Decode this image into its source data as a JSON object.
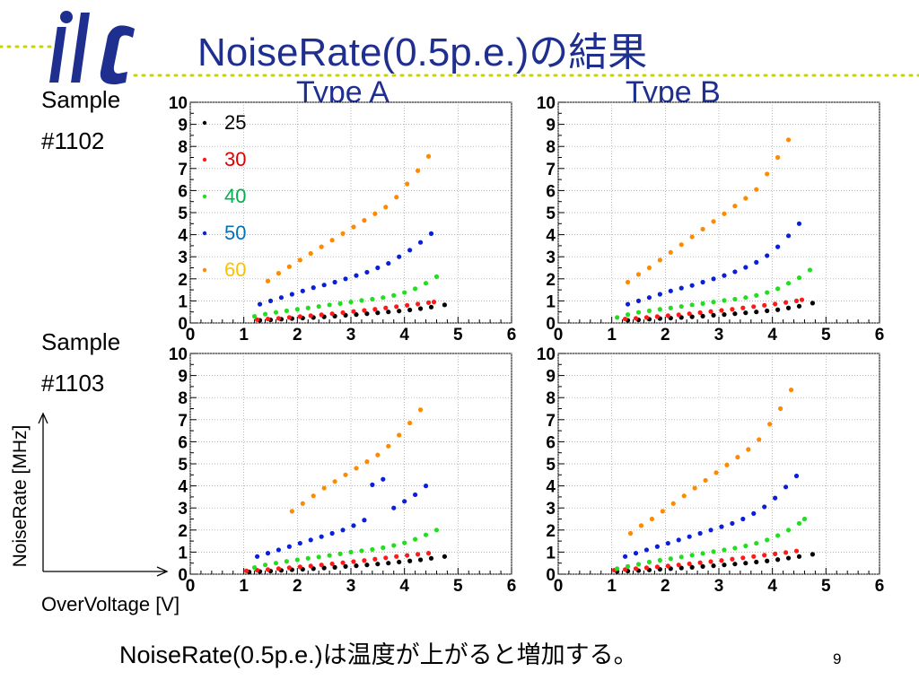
{
  "slide": {
    "title": "NoiseRate(0.5p.e.)の結果",
    "type_a": "Type A",
    "type_b": "Type B",
    "sample1_line1": "Sample",
    "sample1_line2": "#1102",
    "sample2_line1": "Sample",
    "sample2_line2": "#1103",
    "y_axis_desc": "NoiseRate [MHz]",
    "x_axis_desc": "OverVoltage [V]",
    "conclusion": "NoiseRate(0.5p.e.)は温度が上がると増加する。",
    "page_number": "9"
  },
  "colors": {
    "title": "#1f2f8f",
    "logo": "#1f2f8f",
    "deco_dots": "#c8d400",
    "series": {
      "25": "#000000",
      "30": "#ff1a1a",
      "40": "#22dd22",
      "50": "#0a1fd8",
      "60": "#ff8a00"
    },
    "legend_text": {
      "25": "#000000",
      "30": "#e00000",
      "40": "#00b050",
      "50": "#0070c0",
      "60": "#ffc000"
    }
  },
  "icons": {
    "logo": "ilc-logo"
  },
  "chart_data": [
    {
      "type": "scatter",
      "panel": "Sample #1102 - Type A",
      "xlim": [
        0,
        6
      ],
      "ylim": [
        0,
        10
      ],
      "x_ticks": [
        "0",
        "1",
        "2",
        "3",
        "4",
        "5",
        "6"
      ],
      "y_ticks": [
        "0",
        "1",
        "2",
        "3",
        "4",
        "5",
        "6",
        "7",
        "8",
        "9",
        "10"
      ],
      "grid": true,
      "legend": {
        "position": "top-left",
        "entries": [
          "25",
          "30",
          "40",
          "50",
          "60"
        ]
      },
      "series": [
        {
          "name": "25",
          "x": [
            1.3,
            1.5,
            1.7,
            1.9,
            2.1,
            2.3,
            2.5,
            2.7,
            2.9,
            3.1,
            3.3,
            3.5,
            3.7,
            3.9,
            4.1,
            4.3,
            4.5,
            4.75
          ],
          "y": [
            0.12,
            0.14,
            0.17,
            0.2,
            0.22,
            0.25,
            0.28,
            0.31,
            0.35,
            0.38,
            0.42,
            0.46,
            0.5,
            0.54,
            0.59,
            0.65,
            0.72,
            0.82
          ]
        },
        {
          "name": "30",
          "x": [
            1.25,
            1.45,
            1.65,
            1.85,
            2.05,
            2.25,
            2.45,
            2.65,
            2.85,
            3.05,
            3.25,
            3.45,
            3.65,
            3.85,
            4.05,
            4.25,
            4.45,
            4.55
          ],
          "y": [
            0.15,
            0.18,
            0.21,
            0.25,
            0.29,
            0.33,
            0.37,
            0.42,
            0.47,
            0.52,
            0.57,
            0.62,
            0.68,
            0.74,
            0.8,
            0.86,
            0.92,
            0.95
          ]
        },
        {
          "name": "40",
          "x": [
            1.2,
            1.4,
            1.6,
            1.8,
            2.0,
            2.2,
            2.4,
            2.6,
            2.8,
            3.0,
            3.2,
            3.4,
            3.6,
            3.8,
            4.0,
            4.2,
            4.4,
            4.6
          ],
          "y": [
            0.3,
            0.4,
            0.48,
            0.55,
            0.62,
            0.68,
            0.75,
            0.82,
            0.88,
            0.95,
            1.02,
            1.08,
            1.15,
            1.25,
            1.38,
            1.55,
            1.8,
            2.1
          ]
        },
        {
          "name": "50",
          "x": [
            1.3,
            1.5,
            1.7,
            1.9,
            2.1,
            2.3,
            2.5,
            2.7,
            2.9,
            3.1,
            3.3,
            3.5,
            3.7,
            3.9,
            4.1,
            4.3,
            4.5
          ],
          "y": [
            0.85,
            1.0,
            1.15,
            1.3,
            1.45,
            1.6,
            1.72,
            1.85,
            2.0,
            2.15,
            2.3,
            2.5,
            2.7,
            3.0,
            3.3,
            3.65,
            4.05
          ]
        },
        {
          "name": "60",
          "x": [
            1.45,
            1.65,
            1.85,
            2.05,
            2.25,
            2.45,
            2.65,
            2.85,
            3.05,
            3.25,
            3.45,
            3.65,
            3.85,
            4.05,
            4.25,
            4.45
          ],
          "y": [
            1.9,
            2.25,
            2.55,
            2.85,
            3.15,
            3.45,
            3.75,
            4.05,
            4.35,
            4.65,
            4.95,
            5.25,
            5.7,
            6.3,
            6.9,
            7.55
          ]
        }
      ]
    },
    {
      "type": "scatter",
      "panel": "Sample #1102 - Type B",
      "xlim": [
        0,
        6
      ],
      "ylim": [
        0,
        10
      ],
      "x_ticks": [
        "0",
        "1",
        "2",
        "3",
        "4",
        "5",
        "6"
      ],
      "y_ticks": [
        "0",
        "1",
        "2",
        "3",
        "4",
        "5",
        "6",
        "7",
        "8",
        "9",
        "10"
      ],
      "grid": true,
      "series": [
        {
          "name": "25",
          "x": [
            1.3,
            1.5,
            1.7,
            1.9,
            2.1,
            2.3,
            2.5,
            2.7,
            2.9,
            3.1,
            3.3,
            3.5,
            3.7,
            3.9,
            4.1,
            4.3,
            4.5,
            4.75
          ],
          "y": [
            0.12,
            0.14,
            0.17,
            0.2,
            0.22,
            0.25,
            0.28,
            0.31,
            0.35,
            0.38,
            0.42,
            0.46,
            0.5,
            0.55,
            0.6,
            0.68,
            0.76,
            0.9
          ]
        },
        {
          "name": "30",
          "x": [
            1.25,
            1.45,
            1.65,
            1.85,
            2.05,
            2.25,
            2.45,
            2.65,
            2.85,
            3.05,
            3.25,
            3.45,
            3.65,
            3.85,
            4.05,
            4.25,
            4.45,
            4.55
          ],
          "y": [
            0.18,
            0.21,
            0.25,
            0.29,
            0.33,
            0.37,
            0.42,
            0.47,
            0.52,
            0.57,
            0.62,
            0.68,
            0.74,
            0.8,
            0.86,
            0.93,
            1.0,
            1.05
          ]
        },
        {
          "name": "40",
          "x": [
            1.1,
            1.3,
            1.5,
            1.7,
            1.9,
            2.1,
            2.3,
            2.5,
            2.7,
            2.9,
            3.1,
            3.3,
            3.5,
            3.7,
            3.9,
            4.1,
            4.3,
            4.5,
            4.7
          ],
          "y": [
            0.25,
            0.38,
            0.48,
            0.55,
            0.62,
            0.68,
            0.75,
            0.82,
            0.88,
            0.95,
            1.02,
            1.08,
            1.15,
            1.25,
            1.38,
            1.55,
            1.8,
            2.05,
            2.4
          ]
        },
        {
          "name": "50",
          "x": [
            1.3,
            1.5,
            1.7,
            1.9,
            2.1,
            2.3,
            2.5,
            2.7,
            2.9,
            3.1,
            3.3,
            3.5,
            3.7,
            3.9,
            4.1,
            4.3,
            4.5
          ],
          "y": [
            0.85,
            1.0,
            1.15,
            1.3,
            1.45,
            1.58,
            1.7,
            1.85,
            2.0,
            2.15,
            2.32,
            2.52,
            2.75,
            3.05,
            3.45,
            3.95,
            4.5
          ]
        },
        {
          "name": "60",
          "x": [
            1.3,
            1.5,
            1.7,
            1.9,
            2.1,
            2.3,
            2.5,
            2.7,
            2.9,
            3.1,
            3.3,
            3.5,
            3.7,
            3.9,
            4.1,
            4.3
          ],
          "y": [
            1.85,
            2.2,
            2.5,
            2.85,
            3.2,
            3.55,
            3.9,
            4.25,
            4.6,
            4.95,
            5.3,
            5.65,
            6.05,
            6.75,
            7.5,
            8.3
          ]
        }
      ]
    },
    {
      "type": "scatter",
      "panel": "Sample #1103 - Type A",
      "xlim": [
        0,
        6
      ],
      "ylim": [
        0,
        10
      ],
      "x_ticks": [
        "0",
        "1",
        "2",
        "3",
        "4",
        "5",
        "6"
      ],
      "y_ticks": [
        "0",
        "1",
        "2",
        "3",
        "4",
        "5",
        "6",
        "7",
        "8",
        "9",
        "10"
      ],
      "grid": true,
      "series": [
        {
          "name": "25",
          "x": [
            1.1,
            1.3,
            1.5,
            1.7,
            1.9,
            2.1,
            2.3,
            2.5,
            2.7,
            2.9,
            3.1,
            3.3,
            3.5,
            3.7,
            3.9,
            4.1,
            4.3,
            4.5,
            4.75
          ],
          "y": [
            0.1,
            0.12,
            0.14,
            0.17,
            0.2,
            0.22,
            0.25,
            0.28,
            0.31,
            0.35,
            0.38,
            0.42,
            0.46,
            0.5,
            0.55,
            0.6,
            0.65,
            0.72,
            0.8
          ]
        },
        {
          "name": "30",
          "x": [
            1.05,
            1.25,
            1.45,
            1.65,
            1.85,
            2.05,
            2.25,
            2.45,
            2.65,
            2.85,
            3.05,
            3.25,
            3.45,
            3.65,
            3.85,
            4.05,
            4.25,
            4.45
          ],
          "y": [
            0.15,
            0.18,
            0.21,
            0.25,
            0.29,
            0.33,
            0.37,
            0.42,
            0.47,
            0.52,
            0.57,
            0.62,
            0.68,
            0.74,
            0.8,
            0.85,
            0.9,
            0.95
          ]
        },
        {
          "name": "40",
          "x": [
            1.2,
            1.4,
            1.6,
            1.8,
            2.0,
            2.2,
            2.4,
            2.6,
            2.8,
            3.0,
            3.2,
            3.4,
            3.6,
            3.8,
            4.0,
            4.2,
            4.4,
            4.6
          ],
          "y": [
            0.3,
            0.42,
            0.5,
            0.58,
            0.65,
            0.72,
            0.78,
            0.85,
            0.92,
            1.0,
            1.06,
            1.12,
            1.2,
            1.3,
            1.42,
            1.58,
            1.78,
            2.0
          ]
        },
        {
          "name": "50",
          "x": [
            1.25,
            1.45,
            1.65,
            1.85,
            2.05,
            2.25,
            2.45,
            2.65,
            2.85,
            3.05,
            3.25,
            3.4,
            3.6,
            3.8,
            4.0,
            4.2,
            4.4
          ],
          "y": [
            0.8,
            0.95,
            1.1,
            1.25,
            1.4,
            1.55,
            1.7,
            1.85,
            2.0,
            2.2,
            2.45,
            4.05,
            4.3,
            3.0,
            3.3,
            3.6,
            4.0
          ]
        },
        {
          "name": "60",
          "x": [
            1.9,
            2.1,
            2.3,
            2.5,
            2.7,
            2.9,
            3.1,
            3.3,
            3.5,
            3.7,
            3.9,
            4.1,
            4.3
          ],
          "y": [
            2.85,
            3.2,
            3.55,
            3.9,
            4.2,
            4.5,
            4.8,
            5.1,
            5.4,
            5.8,
            6.3,
            6.85,
            7.45
          ]
        }
      ]
    },
    {
      "type": "scatter",
      "panel": "Sample #1103 - Type B",
      "xlim": [
        0,
        6
      ],
      "ylim": [
        0,
        10
      ],
      "x_ticks": [
        "0",
        "1",
        "2",
        "3",
        "4",
        "5",
        "6"
      ],
      "y_ticks": [
        "0",
        "1",
        "2",
        "3",
        "4",
        "5",
        "6",
        "7",
        "8",
        "9",
        "10"
      ],
      "grid": true,
      "series": [
        {
          "name": "25",
          "x": [
            1.1,
            1.3,
            1.5,
            1.7,
            1.9,
            2.1,
            2.3,
            2.5,
            2.7,
            2.9,
            3.1,
            3.3,
            3.5,
            3.7,
            3.9,
            4.1,
            4.3,
            4.5,
            4.75
          ],
          "y": [
            0.12,
            0.14,
            0.16,
            0.19,
            0.22,
            0.25,
            0.28,
            0.31,
            0.35,
            0.38,
            0.42,
            0.46,
            0.5,
            0.55,
            0.6,
            0.66,
            0.73,
            0.8,
            0.9
          ]
        },
        {
          "name": "30",
          "x": [
            1.05,
            1.25,
            1.45,
            1.65,
            1.85,
            2.05,
            2.25,
            2.45,
            2.65,
            2.85,
            3.05,
            3.25,
            3.45,
            3.65,
            3.85,
            4.05,
            4.25,
            4.45
          ],
          "y": [
            0.18,
            0.21,
            0.25,
            0.29,
            0.33,
            0.37,
            0.42,
            0.47,
            0.52,
            0.57,
            0.62,
            0.68,
            0.74,
            0.8,
            0.86,
            0.92,
            0.98,
            1.05
          ]
        },
        {
          "name": "40",
          "x": [
            1.1,
            1.3,
            1.5,
            1.7,
            1.9,
            2.1,
            2.3,
            2.5,
            2.7,
            2.9,
            3.1,
            3.3,
            3.5,
            3.7,
            3.9,
            4.1,
            4.3,
            4.5,
            4.6
          ],
          "y": [
            0.25,
            0.35,
            0.45,
            0.55,
            0.63,
            0.7,
            0.78,
            0.86,
            0.94,
            1.02,
            1.1,
            1.18,
            1.28,
            1.4,
            1.55,
            1.75,
            2.0,
            2.3,
            2.5
          ]
        },
        {
          "name": "50",
          "x": [
            1.25,
            1.45,
            1.65,
            1.85,
            2.05,
            2.25,
            2.45,
            2.65,
            2.85,
            3.05,
            3.25,
            3.45,
            3.65,
            3.85,
            4.05,
            4.25,
            4.45
          ],
          "y": [
            0.8,
            0.95,
            1.1,
            1.25,
            1.4,
            1.55,
            1.7,
            1.85,
            2.0,
            2.15,
            2.3,
            2.5,
            2.75,
            3.05,
            3.45,
            3.95,
            4.45
          ]
        },
        {
          "name": "60",
          "x": [
            1.35,
            1.55,
            1.75,
            1.95,
            2.15,
            2.35,
            2.55,
            2.75,
            2.95,
            3.15,
            3.35,
            3.55,
            3.75,
            3.95,
            4.15,
            4.35
          ],
          "y": [
            1.85,
            2.2,
            2.5,
            2.85,
            3.2,
            3.55,
            3.9,
            4.25,
            4.6,
            4.95,
            5.3,
            5.65,
            6.1,
            6.8,
            7.5,
            8.35
          ]
        }
      ]
    }
  ]
}
